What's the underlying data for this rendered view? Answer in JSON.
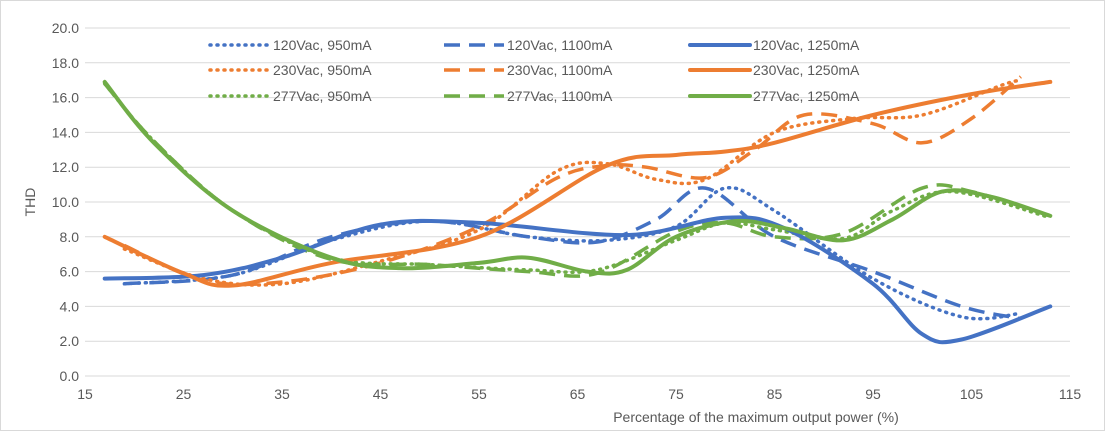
{
  "chart_data": {
    "type": "line",
    "title": "",
    "xlabel": "Percentage of the maximum output power  (%)",
    "ylabel": "THD",
    "xlim": [
      15,
      115
    ],
    "ylim": [
      0,
      20
    ],
    "xticks": [
      15,
      25,
      35,
      45,
      55,
      65,
      75,
      85,
      95,
      105,
      115
    ],
    "yticks": [
      0,
      2,
      4,
      6,
      8,
      10,
      12,
      14,
      16,
      18,
      20
    ],
    "xtick_labels": [
      "15",
      "25",
      "35",
      "45",
      "55",
      "65",
      "75",
      "85",
      "95",
      "105",
      "115"
    ],
    "ytick_labels": [
      "0.0",
      "2.0",
      "4.0",
      "6.0",
      "8.0",
      "10.0",
      "12.0",
      "14.0",
      "16.0",
      "18.0",
      "20.0"
    ],
    "grid": "horizontal",
    "legend_position": "top",
    "series": [
      {
        "name": "120Vac, 950mA",
        "color": "#4472C4",
        "dash": "dot",
        "x": [
          19,
          30,
          40,
          50,
          60,
          68,
          75,
          80,
          85,
          95,
          104,
          110
        ],
        "y": [
          5.3,
          5.8,
          7.8,
          8.9,
          8.0,
          7.8,
          8.6,
          10.8,
          9.5,
          5.6,
          3.4,
          3.6
        ]
      },
      {
        "name": "120Vac, 1100mA",
        "color": "#4472C4",
        "dash": "dash",
        "x": [
          19,
          30,
          40,
          50,
          60,
          67,
          73,
          78,
          85,
          95,
          104,
          110
        ],
        "y": [
          5.3,
          5.8,
          8.0,
          8.9,
          8.0,
          7.7,
          9.0,
          10.8,
          8.0,
          6.0,
          4.0,
          3.3
        ]
      },
      {
        "name": "120Vac, 1250mA",
        "color": "#4472C4",
        "dash": "solid",
        "x": [
          17,
          27,
          35,
          45,
          55,
          70,
          80,
          86,
          95,
          100,
          104,
          113
        ],
        "y": [
          5.6,
          5.8,
          6.8,
          8.7,
          8.8,
          8.1,
          9.1,
          8.5,
          5.3,
          2.4,
          2.1,
          4.0
        ]
      },
      {
        "name": "230Vac, 950mA",
        "color": "#ED7D31",
        "dash": "dot",
        "x": [
          19,
          27,
          35,
          45,
          55,
          63,
          68,
          73,
          78,
          85,
          93,
          100,
          108,
          110
        ],
        "y": [
          7.3,
          5.6,
          5.3,
          6.6,
          8.4,
          11.8,
          12.2,
          11.3,
          11.3,
          14.0,
          14.8,
          15.0,
          16.7,
          17.0
        ]
      },
      {
        "name": "230Vac, 1100mA",
        "color": "#ED7D31",
        "dash": "dash",
        "x": [
          19,
          27,
          35,
          45,
          55,
          63,
          68,
          72,
          78,
          83,
          88,
          95,
          100,
          105,
          110
        ],
        "y": [
          7.5,
          5.5,
          5.4,
          6.5,
          8.6,
          11.4,
          12.1,
          12.0,
          11.4,
          13.0,
          15.0,
          14.5,
          13.4,
          14.8,
          17.2
        ]
      },
      {
        "name": "230Vac, 1250mA",
        "color": "#ED7D31",
        "dash": "solid",
        "x": [
          17,
          25,
          30,
          40,
          55,
          68,
          75,
          80,
          85,
          95,
          105,
          113
        ],
        "y": [
          8.0,
          5.9,
          5.2,
          6.5,
          8.0,
          12.1,
          12.7,
          12.9,
          13.4,
          15.0,
          16.2,
          16.9
        ]
      },
      {
        "name": "277Vac, 950mA",
        "color": "#70AD47",
        "dash": "dot",
        "x": [
          17,
          22,
          30,
          40,
          50,
          60,
          67,
          75,
          80,
          85,
          92,
          97,
          103,
          113
        ],
        "y": [
          16.8,
          13.5,
          9.5,
          6.8,
          6.4,
          6.1,
          6.1,
          7.8,
          8.8,
          8.4,
          7.9,
          9.5,
          10.6,
          9.1
        ]
      },
      {
        "name": "277Vac, 1100mA",
        "color": "#70AD47",
        "dash": "dash",
        "x": [
          17,
          22,
          30,
          40,
          50,
          60,
          67,
          75,
          80,
          85,
          92,
          100,
          105,
          113
        ],
        "y": [
          16.8,
          13.5,
          9.5,
          6.7,
          6.4,
          6.0,
          5.9,
          8.3,
          8.8,
          8.0,
          8.2,
          10.8,
          10.6,
          9.2
        ]
      },
      {
        "name": "277Vac, 1250mA",
        "color": "#70AD47",
        "dash": "solid",
        "x": [
          17,
          22,
          30,
          40,
          47,
          55,
          60,
          66,
          70,
          75,
          81,
          86,
          92,
          97,
          102,
          107,
          113
        ],
        "y": [
          16.9,
          13.4,
          9.5,
          6.8,
          6.2,
          6.5,
          6.8,
          6.0,
          6.1,
          8.0,
          8.9,
          8.5,
          7.8,
          9.0,
          10.6,
          10.3,
          9.2
        ]
      }
    ]
  }
}
